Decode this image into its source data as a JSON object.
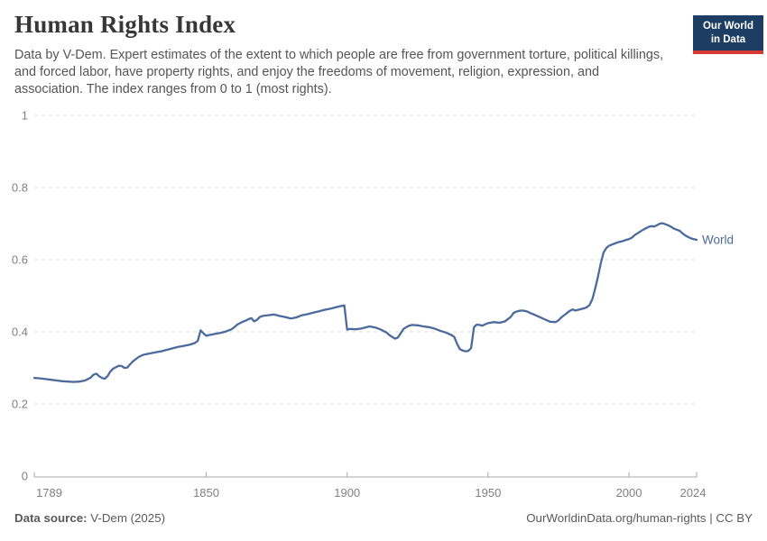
{
  "header": {
    "title": "Human Rights Index",
    "subtitle": "Data by V-Dem. Expert estimates of the extent to which people are free from government torture, political killings, and forced labor, have property rights, and enjoy the freedoms of movement, religion, expression, and association. The index ranges from 0 to 1 (most rights).",
    "logo": {
      "line1": "Our World",
      "line2": "in Data",
      "bg_color": "#1d3d63",
      "accent_color": "#d73a34"
    }
  },
  "chart_data": {
    "type": "line",
    "title": "Human Rights Index",
    "xlabel": "",
    "ylabel": "",
    "x_domain": [
      1789,
      2024
    ],
    "y_domain": [
      0,
      1
    ],
    "x_ticks": [
      1789,
      1850,
      1900,
      1950,
      2000,
      2024
    ],
    "y_ticks": [
      0,
      0.2,
      0.4,
      0.6,
      0.8,
      1
    ],
    "grid": "horizontal-dashed",
    "legend_position": "end-of-line",
    "series": [
      {
        "name": "World",
        "color": "#4C6A9C",
        "points": [
          [
            1789,
            0.272
          ],
          [
            1791,
            0.271
          ],
          [
            1793,
            0.269
          ],
          [
            1795,
            0.267
          ],
          [
            1797,
            0.265
          ],
          [
            1799,
            0.263
          ],
          [
            1801,
            0.262
          ],
          [
            1803,
            0.261
          ],
          [
            1805,
            0.262
          ],
          [
            1807,
            0.265
          ],
          [
            1809,
            0.273
          ],
          [
            1810,
            0.281
          ],
          [
            1811,
            0.284
          ],
          [
            1812,
            0.277
          ],
          [
            1813,
            0.272
          ],
          [
            1814,
            0.27
          ],
          [
            1815,
            0.277
          ],
          [
            1816,
            0.29
          ],
          [
            1817,
            0.298
          ],
          [
            1818,
            0.302
          ],
          [
            1819,
            0.306
          ],
          [
            1820,
            0.305
          ],
          [
            1821,
            0.3
          ],
          [
            1822,
            0.301
          ],
          [
            1823,
            0.31
          ],
          [
            1824,
            0.318
          ],
          [
            1825,
            0.324
          ],
          [
            1826,
            0.33
          ],
          [
            1827,
            0.334
          ],
          [
            1828,
            0.337
          ],
          [
            1830,
            0.34
          ],
          [
            1832,
            0.343
          ],
          [
            1834,
            0.346
          ],
          [
            1836,
            0.35
          ],
          [
            1838,
            0.354
          ],
          [
            1840,
            0.358
          ],
          [
            1842,
            0.361
          ],
          [
            1844,
            0.364
          ],
          [
            1846,
            0.369
          ],
          [
            1847,
            0.375
          ],
          [
            1848,
            0.404
          ],
          [
            1849,
            0.396
          ],
          [
            1850,
            0.389
          ],
          [
            1851,
            0.391
          ],
          [
            1853,
            0.394
          ],
          [
            1855,
            0.397
          ],
          [
            1857,
            0.401
          ],
          [
            1859,
            0.407
          ],
          [
            1860,
            0.413
          ],
          [
            1861,
            0.42
          ],
          [
            1862,
            0.424
          ],
          [
            1863,
            0.428
          ],
          [
            1864,
            0.431
          ],
          [
            1865,
            0.435
          ],
          [
            1866,
            0.438
          ],
          [
            1867,
            0.429
          ],
          [
            1868,
            0.433
          ],
          [
            1869,
            0.441
          ],
          [
            1870,
            0.444
          ],
          [
            1872,
            0.446
          ],
          [
            1874,
            0.448
          ],
          [
            1876,
            0.444
          ],
          [
            1878,
            0.441
          ],
          [
            1880,
            0.437
          ],
          [
            1882,
            0.44
          ],
          [
            1884,
            0.446
          ],
          [
            1886,
            0.449
          ],
          [
            1888,
            0.453
          ],
          [
            1890,
            0.457
          ],
          [
            1892,
            0.461
          ],
          [
            1894,
            0.464
          ],
          [
            1896,
            0.468
          ],
          [
            1898,
            0.472
          ],
          [
            1899,
            0.473
          ],
          [
            1900,
            0.406
          ],
          [
            1901,
            0.408
          ],
          [
            1903,
            0.407
          ],
          [
            1905,
            0.409
          ],
          [
            1907,
            0.413
          ],
          [
            1908,
            0.415
          ],
          [
            1910,
            0.412
          ],
          [
            1912,
            0.406
          ],
          [
            1914,
            0.398
          ],
          [
            1915,
            0.391
          ],
          [
            1916,
            0.386
          ],
          [
            1917,
            0.381
          ],
          [
            1918,
            0.384
          ],
          [
            1919,
            0.396
          ],
          [
            1920,
            0.408
          ],
          [
            1921,
            0.413
          ],
          [
            1922,
            0.417
          ],
          [
            1923,
            0.419
          ],
          [
            1925,
            0.418
          ],
          [
            1927,
            0.415
          ],
          [
            1929,
            0.413
          ],
          [
            1931,
            0.409
          ],
          [
            1933,
            0.403
          ],
          [
            1935,
            0.398
          ],
          [
            1937,
            0.391
          ],
          [
            1938,
            0.386
          ],
          [
            1939,
            0.367
          ],
          [
            1940,
            0.352
          ],
          [
            1941,
            0.348
          ],
          [
            1942,
            0.346
          ],
          [
            1943,
            0.347
          ],
          [
            1944,
            0.355
          ],
          [
            1945,
            0.413
          ],
          [
            1946,
            0.42
          ],
          [
            1947,
            0.419
          ],
          [
            1948,
            0.417
          ],
          [
            1949,
            0.421
          ],
          [
            1950,
            0.424
          ],
          [
            1952,
            0.427
          ],
          [
            1954,
            0.425
          ],
          [
            1956,
            0.429
          ],
          [
            1958,
            0.441
          ],
          [
            1959,
            0.452
          ],
          [
            1960,
            0.456
          ],
          [
            1961,
            0.458
          ],
          [
            1962,
            0.459
          ],
          [
            1963,
            0.458
          ],
          [
            1964,
            0.456
          ],
          [
            1965,
            0.452
          ],
          [
            1966,
            0.449
          ],
          [
            1968,
            0.442
          ],
          [
            1970,
            0.435
          ],
          [
            1972,
            0.428
          ],
          [
            1974,
            0.427
          ],
          [
            1975,
            0.432
          ],
          [
            1976,
            0.44
          ],
          [
            1977,
            0.446
          ],
          [
            1978,
            0.452
          ],
          [
            1979,
            0.458
          ],
          [
            1980,
            0.462
          ],
          [
            1981,
            0.459
          ],
          [
            1982,
            0.461
          ],
          [
            1983,
            0.463
          ],
          [
            1984,
            0.465
          ],
          [
            1985,
            0.468
          ],
          [
            1986,
            0.474
          ],
          [
            1987,
            0.49
          ],
          [
            1988,
            0.52
          ],
          [
            1989,
            0.553
          ],
          [
            1990,
            0.59
          ],
          [
            1991,
            0.62
          ],
          [
            1992,
            0.633
          ],
          [
            1993,
            0.639
          ],
          [
            1994,
            0.642
          ],
          [
            1995,
            0.645
          ],
          [
            1996,
            0.648
          ],
          [
            1997,
            0.65
          ],
          [
            1998,
            0.652
          ],
          [
            1999,
            0.655
          ],
          [
            2000,
            0.657
          ],
          [
            2001,
            0.661
          ],
          [
            2002,
            0.668
          ],
          [
            2003,
            0.673
          ],
          [
            2004,
            0.678
          ],
          [
            2005,
            0.683
          ],
          [
            2006,
            0.687
          ],
          [
            2007,
            0.691
          ],
          [
            2008,
            0.693
          ],
          [
            2009,
            0.692
          ],
          [
            2010,
            0.696
          ],
          [
            2011,
            0.7
          ],
          [
            2012,
            0.701
          ],
          [
            2013,
            0.698
          ],
          [
            2014,
            0.695
          ],
          [
            2015,
            0.691
          ],
          [
            2016,
            0.686
          ],
          [
            2017,
            0.683
          ],
          [
            2018,
            0.68
          ],
          [
            2019,
            0.673
          ],
          [
            2020,
            0.667
          ],
          [
            2021,
            0.663
          ],
          [
            2022,
            0.659
          ],
          [
            2023,
            0.657
          ],
          [
            2024,
            0.655
          ]
        ]
      }
    ]
  },
  "footer": {
    "source_label": "Data source:",
    "source_value": " V-Dem (2025)",
    "rights": "OurWorldinData.org/human-rights | CC BY"
  },
  "colors": {
    "title": "#373737",
    "subtitle": "#555555",
    "axis_text": "#808080",
    "grid": "#dcdcdc",
    "axis_line": "#a8a8a8",
    "line": "#4C6A9C"
  }
}
